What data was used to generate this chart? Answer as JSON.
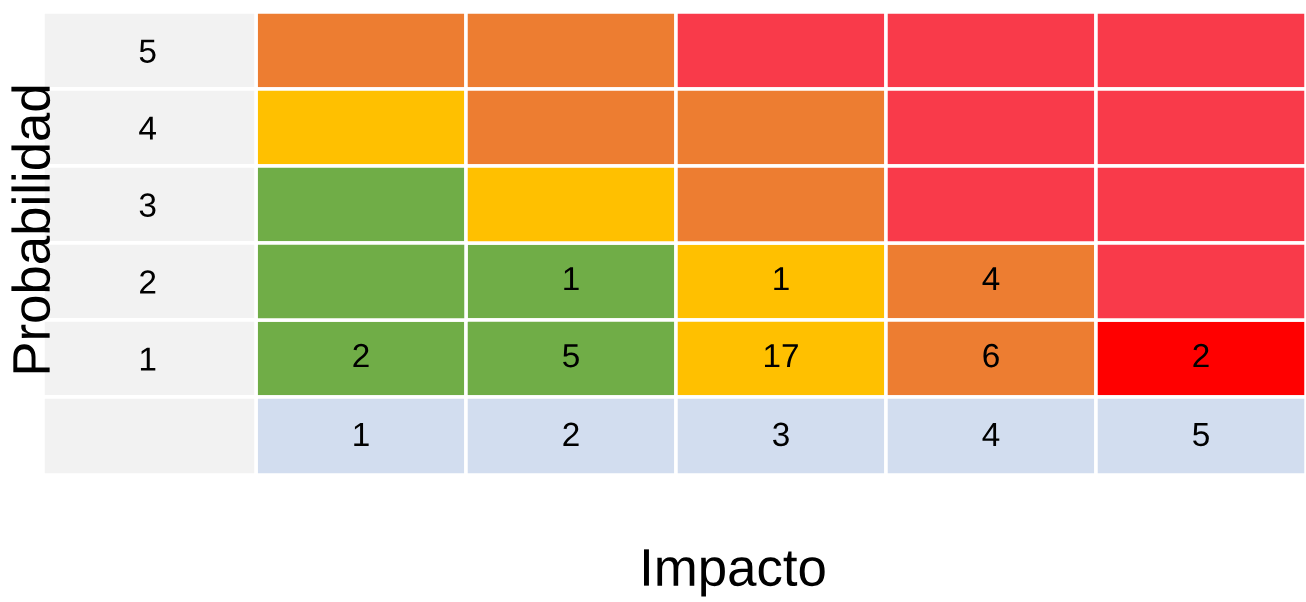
{
  "chart_data": {
    "type": "heatmap",
    "xlabel": "Impacto",
    "ylabel": "Probabilidad",
    "data_labels": true,
    "categories": [
      "1",
      "2",
      "3",
      "4",
      "5"
    ],
    "y_categories": [
      "5",
      "4",
      "3",
      "2",
      "1"
    ],
    "cells": [
      [
        null,
        null,
        null,
        null,
        null
      ],
      [
        null,
        null,
        null,
        null,
        null
      ],
      [
        null,
        null,
        null,
        null,
        null
      ],
      [
        null,
        1,
        1,
        4,
        null
      ],
      [
        2,
        5,
        17,
        6,
        2
      ]
    ],
    "colors": [
      [
        "#ed7d31",
        "#ed7d31",
        "#f93a4a",
        "#f93a4a",
        "#f93a4a"
      ],
      [
        "#ffc000",
        "#ed7d31",
        "#ed7d31",
        "#f93a4a",
        "#f93a4a"
      ],
      [
        "#70ad47",
        "#ffc000",
        "#ed7d31",
        "#f93a4a",
        "#f93a4a"
      ],
      [
        "#70ad47",
        "#70ad47",
        "#ffc000",
        "#ed7d31",
        "#f93a4a"
      ],
      [
        "#70ad47",
        "#70ad47",
        "#ffc000",
        "#ed7d31",
        "#ff0000"
      ]
    ]
  }
}
